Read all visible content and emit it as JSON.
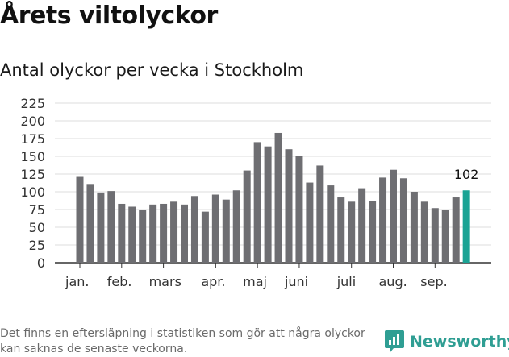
{
  "header": {
    "title": "Årets viltolyckor",
    "subtitle": "Antal olyckor per vecka i Stockholm"
  },
  "footer": {
    "note": "Det finns en eftersläpning i statistiken som gör att några olyckor kan saknas de senaste veckorna.",
    "brand": "Newsworthy",
    "brand_icon": "newsworthy-logo-icon"
  },
  "colors": {
    "bar": "#6e6e72",
    "highlight": "#1aa394",
    "grid": "#dddddd",
    "axis": "#333333",
    "brand": "#2f9e93"
  },
  "chart_data": {
    "type": "bar",
    "title": "Antal olyckor per vecka i Stockholm",
    "xlabel": "",
    "ylabel": "",
    "ylim": [
      0,
      225
    ],
    "yticks": [
      0,
      25,
      50,
      75,
      100,
      125,
      150,
      175,
      200,
      225
    ],
    "grid": true,
    "values": [
      121,
      111,
      99,
      101,
      83,
      79,
      75,
      82,
      83,
      86,
      82,
      94,
      72,
      96,
      89,
      102,
      130,
      170,
      164,
      183,
      160,
      151,
      113,
      137,
      109,
      92,
      86,
      105,
      87,
      120,
      131,
      119,
      100,
      86,
      77,
      75,
      92,
      102
    ],
    "highlight_index": 37,
    "highlight_label": "102",
    "month_labels": [
      {
        "label": "jan.",
        "index": 0
      },
      {
        "label": "feb.",
        "index": 4
      },
      {
        "label": "mars",
        "index": 8
      },
      {
        "label": "apr.",
        "index": 13
      },
      {
        "label": "maj",
        "index": 17
      },
      {
        "label": "juni",
        "index": 21
      },
      {
        "label": "juli",
        "index": 26
      },
      {
        "label": "aug.",
        "index": 30
      },
      {
        "label": "sep.",
        "index": 34
      }
    ]
  }
}
